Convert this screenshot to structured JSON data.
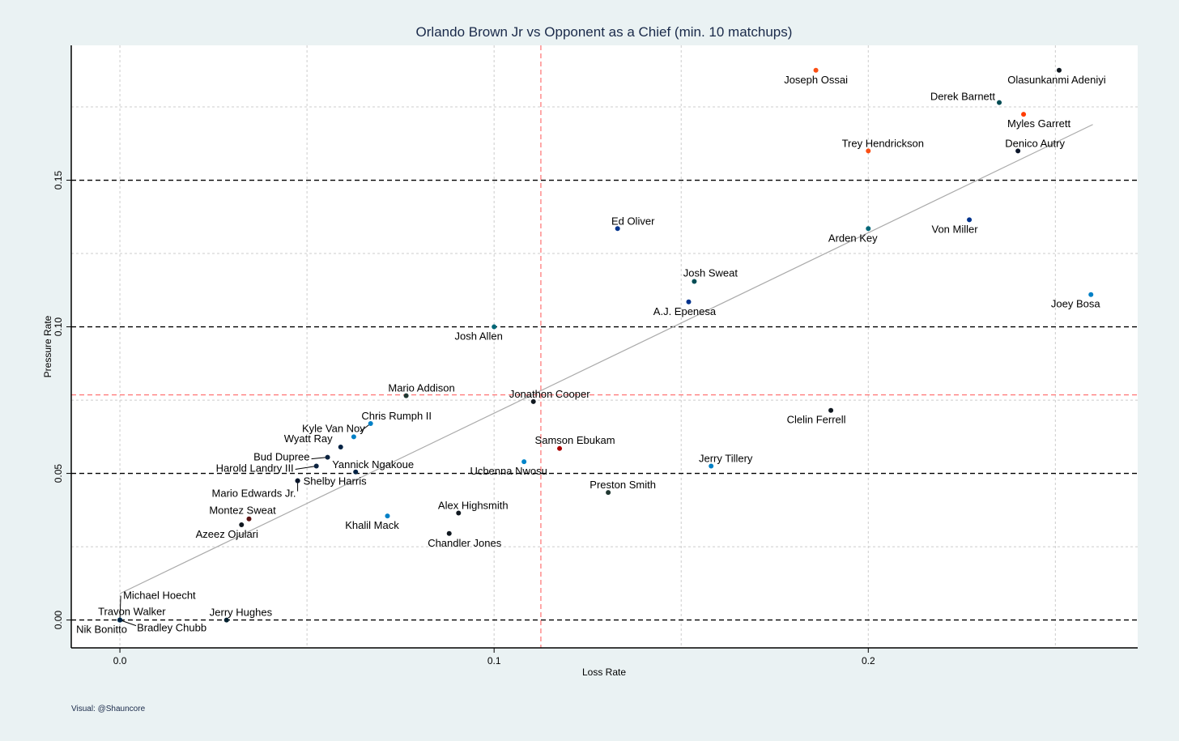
{
  "chart_data": {
    "type": "scatter",
    "title": "Orlando Brown Jr vs Opponent as a Chief (min. 10 matchups)",
    "xlabel": "Loss Rate",
    "ylabel": "Pressure Rate",
    "xlim": [
      -0.013,
      0.272
    ],
    "ylim": [
      -0.0095,
      0.196
    ],
    "xticks": [
      0.0,
      0.1,
      0.2
    ],
    "xtick_labels": [
      "0.0",
      "0.1",
      "0.2"
    ],
    "yticks": [
      0.0,
      0.05,
      0.1,
      0.15
    ],
    "ytick_labels": [
      "0.00",
      "0.05",
      "0.10",
      "0.15"
    ],
    "x_minor_grid": [
      0.05,
      0.15,
      0.25
    ],
    "y_minor_grid": [
      0.025,
      0.075,
      0.125,
      0.175
    ],
    "reference_lines": {
      "y_dashed": [
        0.0,
        0.05,
        0.1,
        0.15
      ],
      "mean_x": 0.1125,
      "mean_y": 0.0768
    },
    "trend_line": {
      "x": [
        0.0,
        0.26
      ],
      "y": [
        0.009,
        0.169
      ]
    },
    "points": [
      {
        "name": "Joseph Ossai",
        "x": 0.186,
        "y": 0.1875,
        "color": "#fb4f14"
      },
      {
        "name": "Olasunkanmi Adeniyi",
        "x": 0.251,
        "y": 0.1875,
        "color": "#101820"
      },
      {
        "name": "Derek Barnett",
        "x": 0.235,
        "y": 0.1765,
        "color": "#004c54"
      },
      {
        "name": "Myles Garrett",
        "x": 0.2415,
        "y": 0.1725,
        "color": "#ff3c00"
      },
      {
        "name": "Trey Hendrickson",
        "x": 0.2,
        "y": 0.16,
        "color": "#fb4f14"
      },
      {
        "name": "Denico Autry",
        "x": 0.24,
        "y": 0.16,
        "color": "#0b162a"
      },
      {
        "name": "Ed Oliver",
        "x": 0.133,
        "y": 0.1335,
        "color": "#00338d"
      },
      {
        "name": "Arden Key",
        "x": 0.2,
        "y": 0.1335,
        "color": "#006778"
      },
      {
        "name": "Von Miller",
        "x": 0.227,
        "y": 0.1365,
        "color": "#00338d"
      },
      {
        "name": "Josh Sweat",
        "x": 0.1535,
        "y": 0.1155,
        "color": "#004c54"
      },
      {
        "name": "A.J. Epenesa",
        "x": 0.152,
        "y": 0.1085,
        "color": "#00338d"
      },
      {
        "name": "Joey Bosa",
        "x": 0.2595,
        "y": 0.111,
        "color": "#0080c6"
      },
      {
        "name": "Josh Allen",
        "x": 0.1,
        "y": 0.1,
        "color": "#006778"
      },
      {
        "name": "Mario Addison",
        "x": 0.0765,
        "y": 0.0765,
        "color": "#203731"
      },
      {
        "name": "Jonathon Cooper",
        "x": 0.1105,
        "y": 0.0745,
        "color": "#101820"
      },
      {
        "name": "Clelin Ferrell",
        "x": 0.19,
        "y": 0.0715,
        "color": "#101820"
      },
      {
        "name": "Chris Rumph II",
        "x": 0.067,
        "y": 0.067,
        "color": "#0080c6"
      },
      {
        "name": "Kyle Van Noy",
        "x": 0.0625,
        "y": 0.0625,
        "color": "#0080c6"
      },
      {
        "name": "Wyatt Ray",
        "x": 0.059,
        "y": 0.059,
        "color": "#002244"
      },
      {
        "name": "Samson Ebukam",
        "x": 0.1175,
        "y": 0.0585,
        "color": "#aa0000"
      },
      {
        "name": "Bud Dupree",
        "x": 0.0555,
        "y": 0.0555,
        "color": "#0c2340"
      },
      {
        "name": "Harold Landry III",
        "x": 0.0525,
        "y": 0.0525,
        "color": "#0c2340"
      },
      {
        "name": "Yannick Ngakoue",
        "x": 0.063,
        "y": 0.0505,
        "color": "#002244"
      },
      {
        "name": "Ucbenna Nwosu",
        "x": 0.108,
        "y": 0.054,
        "color": "#0085ca"
      },
      {
        "name": "Jerry Tillery",
        "x": 0.158,
        "y": 0.0525,
        "color": "#0080c6"
      },
      {
        "name": "Shelby Harris",
        "x": 0.0475,
        "y": 0.0475,
        "color": "#002244"
      },
      {
        "name": "Mario Edwards Jr.",
        "x": 0.0475,
        "y": 0.0475,
        "color": "#0b162a"
      },
      {
        "name": "Preston Smith",
        "x": 0.1305,
        "y": 0.0435,
        "color": "#203731"
      },
      {
        "name": "Alex Highsmith",
        "x": 0.0905,
        "y": 0.0365,
        "color": "#101820"
      },
      {
        "name": "Khalil Mack",
        "x": 0.0715,
        "y": 0.0355,
        "color": "#0080c6"
      },
      {
        "name": "Montez Sweat",
        "x": 0.0345,
        "y": 0.0345,
        "color": "#5a1414"
      },
      {
        "name": "Azeez Ojulari",
        "x": 0.0325,
        "y": 0.0325,
        "color": "#101820"
      },
      {
        "name": "Chandler Jones",
        "x": 0.088,
        "y": 0.0295,
        "color": "#101820"
      },
      {
        "name": "Michael Hoecht",
        "x": 0.0,
        "y": 0.0,
        "color": "#002244"
      },
      {
        "name": "Travon Walker",
        "x": 0.0,
        "y": 0.0,
        "color": "#006778"
      },
      {
        "name": "Bradley Chubb",
        "x": 0.0,
        "y": 0.0,
        "color": "#008e97"
      },
      {
        "name": "Nik Bonitto",
        "x": 0.0,
        "y": 0.0,
        "color": "#002244"
      },
      {
        "name": "Jerry Hughes",
        "x": 0.0285,
        "y": 0.0,
        "color": "#03202f"
      }
    ]
  },
  "footer": {
    "credit": "Visual: @Shauncore"
  },
  "colors": {
    "background": "#eaf2f3",
    "plot_background": "#ffffff",
    "title": "#1a2a4a",
    "mean_line": "#ff7b7b",
    "trend_line": "#aaaaaa"
  }
}
